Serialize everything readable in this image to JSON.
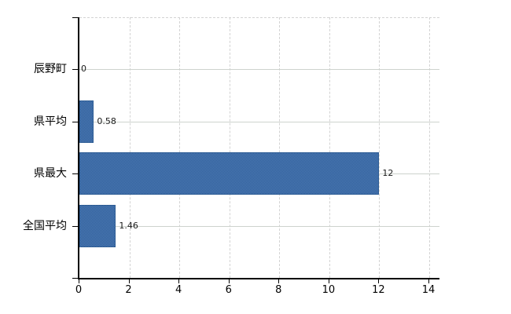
{
  "chart_data": {
    "type": "bar",
    "orientation": "horizontal",
    "title": "",
    "xlabel": "",
    "ylabel": "",
    "categories": [
      "辰野町",
      "県平均",
      "県最大",
      "全国平均"
    ],
    "values": [
      0,
      0.58,
      12,
      1.46
    ],
    "value_labels": [
      "0",
      "0.58",
      "12",
      "1.46"
    ],
    "x_ticks": [
      0,
      2,
      4,
      6,
      8,
      10,
      12,
      14
    ],
    "x_tick_labels": [
      "0",
      "2",
      "4",
      "6",
      "8",
      "10",
      "12",
      "14"
    ],
    "xlim": [
      0,
      14.38
    ],
    "legend": "none",
    "grid": {
      "vertical": "dashed",
      "horizontal": "solid",
      "top_border": "dashed"
    },
    "colors": {
      "bar_fill": "#3d6da7",
      "bar_fill_light": "#4c7ab7",
      "bar_fill_dark": "#315f97",
      "bar_border": "#2d5c94",
      "gridline": "#d3d3d3",
      "axis": "#000000",
      "text": "#000000",
      "background": "#ffffff"
    }
  }
}
